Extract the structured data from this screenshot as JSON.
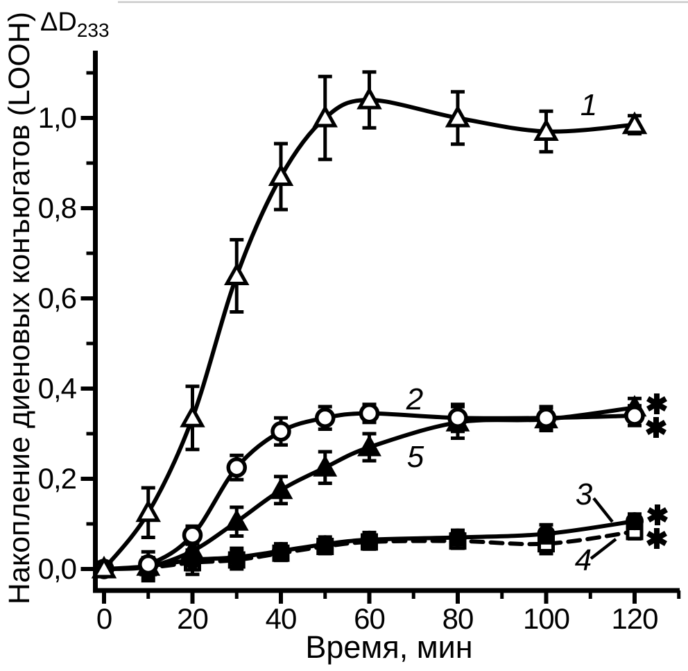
{
  "chart_data": {
    "type": "line",
    "title": "",
    "xlabel": "Время, мин",
    "ylabel": "Накопление диеновых конъюгатов (LOOH)",
    "y_unit_label": {
      "main": "ΔD",
      "sub": "233"
    },
    "xlim": [
      0,
      130
    ],
    "ylim": [
      -0.05,
      1.15
    ],
    "grid": false,
    "legend_position": "inline-curve-numbers",
    "x_major_ticks": [
      0,
      20,
      40,
      60,
      80,
      100,
      120
    ],
    "x_minor_ticks": [
      10,
      30,
      50,
      70,
      90,
      110,
      130
    ],
    "y_major_ticks": [
      {
        "label": "0,0",
        "value": 0.0
      },
      {
        "label": "0,2",
        "value": 0.2
      },
      {
        "label": "0,4",
        "value": 0.4
      },
      {
        "label": "0,6",
        "value": 0.6
      },
      {
        "label": "0,8",
        "value": 0.8
      },
      {
        "label": "1,0",
        "value": 1.0
      }
    ],
    "y_minor_tick_values": [
      0.1,
      0.3,
      0.5,
      0.7,
      0.9,
      1.1
    ],
    "decimal_separator": ",",
    "x": [
      0,
      10,
      20,
      30,
      40,
      50,
      60,
      80,
      100,
      120
    ],
    "series": [
      {
        "label": "1",
        "marker": "open-triangle",
        "line": "solid",
        "values": [
          0.0,
          0.125,
          0.335,
          0.65,
          0.87,
          1.0,
          1.04,
          1.0,
          0.97,
          0.985
        ],
        "errors": [
          0.015,
          0.055,
          0.07,
          0.08,
          0.073,
          0.092,
          0.062,
          0.058,
          0.045,
          0.02
        ]
      },
      {
        "label": "2",
        "marker": "open-circle",
        "line": "solid",
        "values": [
          0.0,
          0.01,
          0.075,
          0.225,
          0.305,
          0.335,
          0.345,
          0.335,
          0.335,
          0.34
        ],
        "errors": [
          0.005,
          0.015,
          0.02,
          0.027,
          0.03,
          0.025,
          0.02,
          0.03,
          0.025,
          0.022
        ]
      },
      {
        "label": "5",
        "marker": "filled-triangle",
        "line": "solid",
        "values": [
          0.0,
          0.005,
          0.04,
          0.105,
          0.175,
          0.225,
          0.27,
          0.325,
          0.332,
          0.358
        ],
        "errors": [
          0.005,
          0.012,
          0.022,
          0.032,
          0.03,
          0.035,
          0.03,
          0.035,
          0.025,
          0.02
        ]
      },
      {
        "label": "3",
        "marker": "filled-circle",
        "line": "solid",
        "values": [
          0.0,
          0.006,
          0.02,
          0.026,
          0.04,
          0.055,
          0.065,
          0.07,
          0.078,
          0.106
        ],
        "errors": [
          0.005,
          0.032,
          0.022,
          0.02,
          0.016,
          0.016,
          0.016,
          0.016,
          0.02,
          0.016
        ]
      },
      {
        "label": "4",
        "marker": "open-square",
        "line": "dashed",
        "values": [
          0.0,
          0.003,
          0.014,
          0.02,
          0.035,
          0.05,
          0.06,
          0.062,
          0.056,
          0.083
        ],
        "errors": [
          0.005,
          0.022,
          0.026,
          0.02,
          0.016,
          0.016,
          0.016,
          0.016,
          0.022,
          0.016
        ]
      }
    ],
    "significance_marks": [
      {
        "symbol": "*",
        "series": "5"
      },
      {
        "symbol": "*",
        "series": "2"
      },
      {
        "symbol": "*",
        "series": "3"
      },
      {
        "symbol": "*",
        "series": "4"
      }
    ]
  },
  "colors": {
    "ink": "#000000",
    "background": "#ffffff",
    "top_rule": "#c9c9c9"
  }
}
